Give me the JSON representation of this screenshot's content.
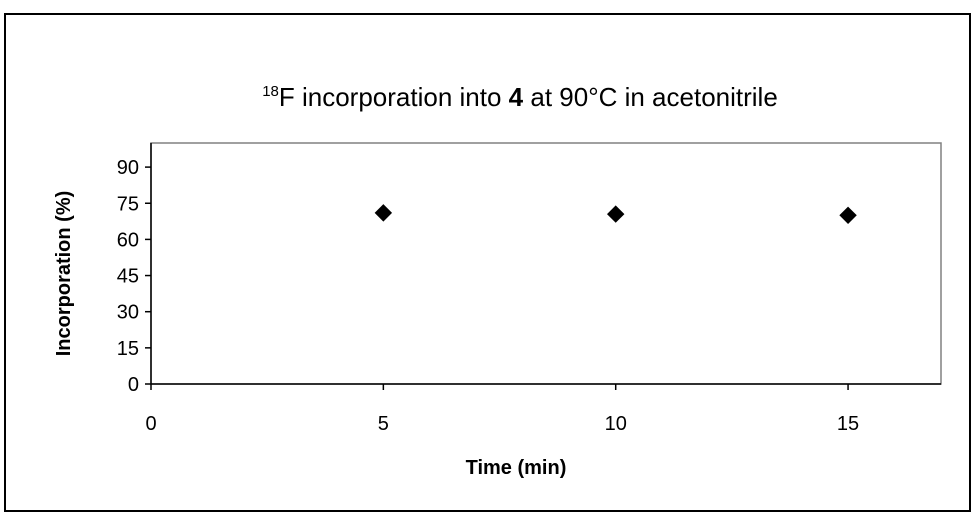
{
  "chart_data": {
    "type": "scatter",
    "title": {
      "superscript": "18",
      "part1": "F incorporation into ",
      "bold": "4",
      "part2": " at 90°C in acetonitrile"
    },
    "xlabel": "Time (min)",
    "ylabel": "Incorporation (%)",
    "xlim": [
      0,
      17
    ],
    "ylim": [
      0,
      100
    ],
    "xticks": [
      0,
      5,
      10,
      15
    ],
    "yticks": [
      0,
      15,
      30,
      45,
      60,
      75,
      90
    ],
    "grid": false,
    "legend": "none",
    "series": [
      {
        "x": [
          5,
          10,
          15
        ],
        "y": [
          71,
          70.5,
          70
        ],
        "marker": "diamond",
        "color": "#000000"
      }
    ]
  }
}
